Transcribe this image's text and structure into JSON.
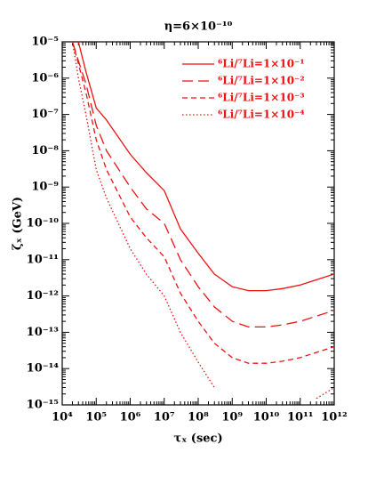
{
  "chart_data": {
    "type": "line",
    "title": "η=6×10⁻¹⁰",
    "x_label": "τₓ (sec)",
    "y_label": "ζₓ (GeV)",
    "x_log": true,
    "y_log": true,
    "legend": "upper right",
    "xlim": [
      10000,
      1000000000000
    ],
    "ylim": [
      1e-15,
      1e-05
    ],
    "xticks": [
      {
        "value": 10000,
        "label": "10⁴"
      },
      {
        "value": 100000,
        "label": "10⁵"
      },
      {
        "value": 1000000,
        "label": "10⁶"
      },
      {
        "value": 10000000,
        "label": "10⁷"
      },
      {
        "value": 100000000,
        "label": "10⁸"
      },
      {
        "value": 1000000000,
        "label": "10⁹"
      },
      {
        "value": 10000000000,
        "label": "10¹⁰"
      },
      {
        "value": 100000000000,
        "label": "10¹¹"
      },
      {
        "value": 1000000000000,
        "label": "10¹²"
      }
    ],
    "yticks": [
      {
        "value": 1e-15,
        "label": "10⁻¹⁵"
      },
      {
        "value": 1e-14,
        "label": "10⁻¹⁴"
      },
      {
        "value": 1e-13,
        "label": "10⁻¹³"
      },
      {
        "value": 1e-12,
        "label": "10⁻¹²"
      },
      {
        "value": 1e-11,
        "label": "10⁻¹¹"
      },
      {
        "value": 1e-10,
        "label": "10⁻¹⁰"
      },
      {
        "value": 1e-09,
        "label": "10⁻⁹"
      },
      {
        "value": 1e-08,
        "label": "10⁻⁸"
      },
      {
        "value": 1e-07,
        "label": "10⁻⁷"
      },
      {
        "value": 1e-06,
        "label": "10⁻⁶"
      },
      {
        "value": 1e-05,
        "label": "10⁻⁵"
      }
    ],
    "x": [
      20000,
      30000,
      50000,
      100000,
      200000,
      1000000,
      3000000,
      10000000,
      30000000,
      100000000,
      300000000,
      1000000000,
      3000000000,
      10000000000,
      30000000000,
      100000000000,
      300000000000,
      1000000000000
    ],
    "series": [
      {
        "name": "⁶Li/⁷Li=1×10⁻¹",
        "color": "#ee1111",
        "line_style": "solid",
        "values": [
          null,
          1e-05,
          1.5e-06,
          1.5e-07,
          7e-08,
          8e-09,
          2.5e-09,
          8e-10,
          7e-11,
          1.5e-11,
          4e-12,
          1.8e-12,
          1.4e-12,
          1.4e-12,
          1.6e-12,
          2e-12,
          2.8e-12,
          4e-12
        ]
      },
      {
        "name": "⁶Li/⁷Li=1×10⁻²",
        "color": "#ee1111",
        "line_style": "longdash",
        "values": [
          1e-05,
          3e-06,
          7e-07,
          5e-08,
          1e-08,
          1e-09,
          2.5e-10,
          1e-10,
          1e-11,
          1.8e-12,
          5e-13,
          2e-13,
          1.4e-13,
          1.4e-13,
          1.6e-13,
          2e-13,
          2.8e-13,
          4e-13
        ]
      },
      {
        "name": "⁶Li/⁷Li=1×10⁻³",
        "color": "#ee1111",
        "line_style": "dashed",
        "values": [
          1e-05,
          2.5e-06,
          4e-07,
          2e-08,
          3e-09,
          1.5e-10,
          4e-11,
          1.2e-11,
          1.2e-12,
          2e-13,
          5e-14,
          2e-14,
          1.4e-14,
          1.4e-14,
          1.6e-14,
          2e-14,
          2.8e-14,
          4e-14
        ]
      },
      {
        "name": "⁶Li/⁷Li=1×10⁻⁴",
        "color": "#ee1111",
        "line_style": "dotted",
        "values": [
          1e-05,
          1e-06,
          1e-07,
          3e-09,
          5e-10,
          2e-11,
          4e-12,
          1e-12,
          1e-13,
          1.5e-14,
          3e-15,
          null,
          null,
          null,
          null,
          null,
          1.5e-15,
          3e-15
        ]
      }
    ]
  }
}
